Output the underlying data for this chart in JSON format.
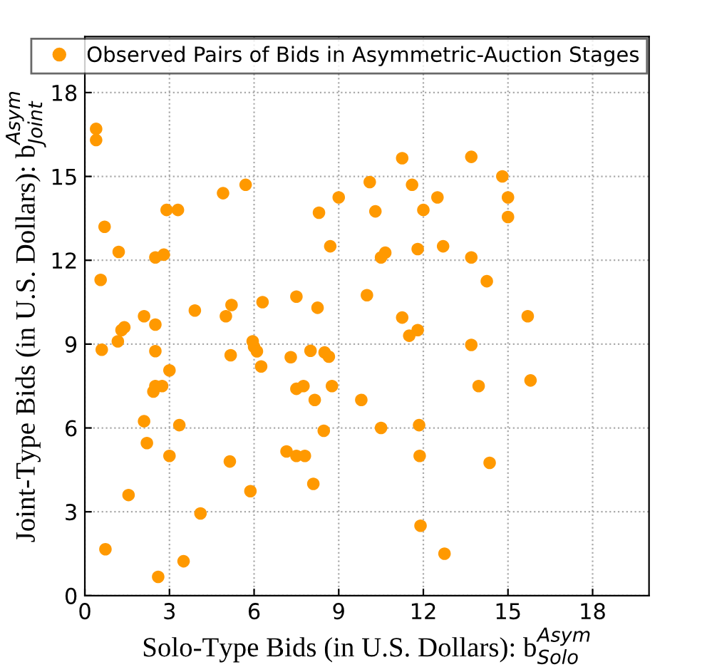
{
  "chart_data": {
    "type": "scatter",
    "xlabel": "Solo-Type Bids (in U.S. Dollars): b$^{Asym}$$_{Solo}$",
    "ylabel": "Joint-Type Bids (in U.S. Dollars): b$^{Asym}$$_{Joint}$",
    "xlim": [
      0,
      20
    ],
    "ylim": [
      0,
      20
    ],
    "xticks": [
      0,
      3,
      6,
      9,
      12,
      15,
      18
    ],
    "yticks": [
      0,
      3,
      6,
      9,
      12,
      15,
      18
    ],
    "grid": true,
    "legend": "top right",
    "marker": "circle",
    "series": [
      {
        "name": "Observed Pairs of Bids in Asymmetric-Auction Stages",
        "color": "#ff9900",
        "x": [
          0.4,
          0.4,
          0.56,
          0.7,
          1.2,
          2.5,
          2.8,
          2.9,
          3.3,
          3.9,
          4.9,
          5.7,
          5.0,
          5.2,
          6.3,
          2.1,
          2.5,
          7.5,
          8.25,
          8.3,
          8.7,
          9.0,
          10.1,
          10.3,
          10.0,
          10.5,
          10.65,
          11.25,
          13.7,
          11.6,
          14.8,
          12.5,
          15.0,
          12.0,
          15.0,
          11.8,
          12.7,
          13.7,
          14.25,
          11.25,
          15.7,
          11.5,
          11.8,
          13.7,
          13.96,
          15.8,
          10.5,
          11.85,
          11.87,
          14.35,
          11.9,
          12.75,
          0.6,
          1.17,
          1.3,
          1.4,
          2.5,
          3.0,
          2.43,
          2.5,
          2.74,
          2.1,
          2.2,
          3.35,
          3.0,
          1.55,
          0.73,
          2.6,
          3.5,
          4.1,
          5.17,
          5.14,
          5.87,
          5.95,
          6.0,
          6.1,
          6.25,
          7.3,
          8.0,
          8.5,
          8.65,
          7.5,
          7.75,
          8.15,
          8.76,
          9.8,
          8.47,
          7.15,
          7.5,
          7.8,
          8.1
        ],
        "values": [
          16.7,
          16.3,
          11.3,
          13.2,
          12.3,
          12.1,
          12.2,
          13.8,
          13.8,
          10.2,
          14.4,
          14.7,
          10.0,
          10.4,
          10.5,
          10.0,
          9.7,
          10.7,
          10.3,
          13.7,
          12.5,
          14.25,
          14.8,
          13.75,
          10.75,
          12.1,
          12.27,
          15.65,
          15.7,
          14.7,
          15.0,
          14.25,
          14.25,
          13.8,
          13.55,
          12.4,
          12.5,
          12.1,
          11.25,
          9.95,
          10.0,
          9.3,
          9.5,
          8.97,
          7.5,
          7.7,
          6.0,
          6.1,
          5.0,
          4.75,
          2.5,
          1.5,
          8.8,
          9.1,
          9.5,
          9.6,
          8.75,
          8.06,
          7.3,
          7.5,
          7.5,
          6.24,
          5.46,
          6.1,
          5.0,
          3.6,
          1.66,
          0.67,
          1.23,
          2.94,
          8.6,
          4.8,
          3.74,
          9.1,
          8.9,
          8.74,
          8.2,
          8.53,
          8.76,
          8.7,
          8.55,
          7.4,
          7.5,
          7.0,
          7.5,
          7.0,
          5.9,
          5.16,
          5.0,
          5.0,
          4.0
        ]
      }
    ]
  }
}
